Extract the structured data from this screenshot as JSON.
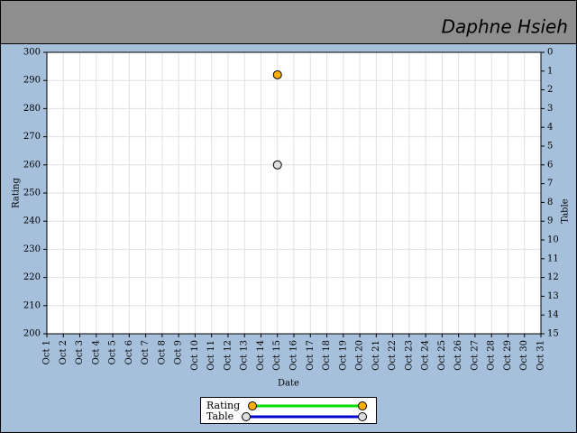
{
  "header": {
    "user": "Daphne Hsieh"
  },
  "chart_data": {
    "type": "scatter",
    "xlabel": "Date",
    "ylabel": "Rating",
    "y2label": "Table",
    "categories": [
      "Oct 1",
      "Oct 2",
      "Oct 3",
      "Oct 4",
      "Oct 5",
      "Oct 6",
      "Oct 7",
      "Oct 8",
      "Oct 9",
      "Oct 10",
      "Oct 11",
      "Oct 12",
      "Oct 13",
      "Oct 14",
      "Oct 15",
      "Oct 16",
      "Oct 17",
      "Oct 18",
      "Oct 19",
      "Oct 20",
      "Oct 21",
      "Oct 22",
      "Oct 23",
      "Oct 24",
      "Oct 25",
      "Oct 26",
      "Oct 27",
      "Oct 28",
      "Oct 29",
      "Oct 30",
      "Oct 31"
    ],
    "series": [
      {
        "name": "Rating",
        "color": "#00dd00",
        "marker_color": "#ffb000",
        "values": [
          null,
          null,
          null,
          null,
          null,
          null,
          null,
          null,
          null,
          null,
          null,
          null,
          null,
          null,
          292,
          null,
          null,
          null,
          null,
          null,
          null,
          null,
          null,
          null,
          null,
          null,
          null,
          null,
          null,
          null,
          null
        ]
      },
      {
        "name": "Table",
        "color": "#0000cc",
        "marker_color": "#dddddd",
        "axis": "y2",
        "values": [
          null,
          null,
          null,
          null,
          null,
          null,
          null,
          null,
          null,
          null,
          null,
          null,
          null,
          null,
          6,
          null,
          null,
          null,
          null,
          null,
          null,
          null,
          null,
          null,
          null,
          null,
          null,
          null,
          null,
          null,
          null
        ]
      }
    ],
    "ylim": [
      200,
      300
    ],
    "yticks": [
      200,
      210,
      220,
      230,
      240,
      250,
      260,
      270,
      280,
      290,
      300
    ],
    "y2lim": [
      15,
      0
    ],
    "y2ticks": [
      0,
      1,
      2,
      3,
      4,
      5,
      6,
      7,
      8,
      9,
      10,
      11,
      12,
      13,
      14,
      15
    ],
    "grid": true
  }
}
